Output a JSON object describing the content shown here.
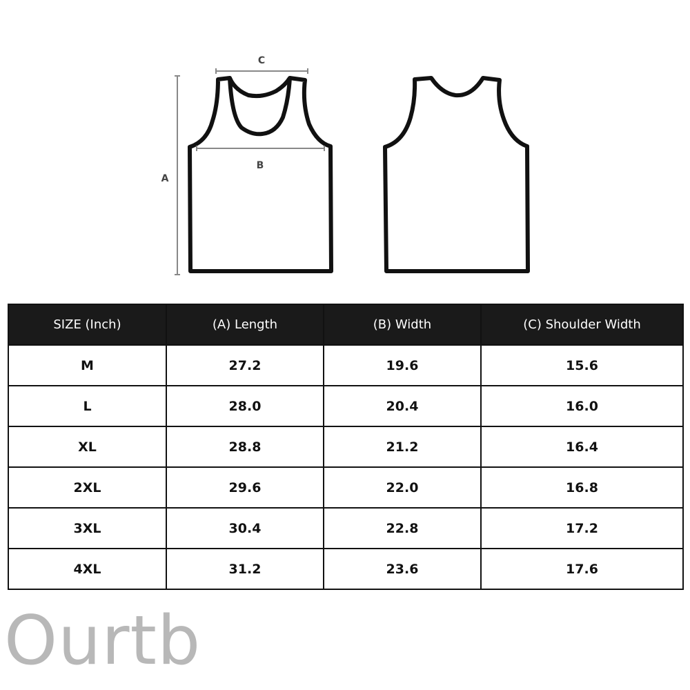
{
  "diagram": {
    "labels": {
      "a": "A",
      "b": "B",
      "c": "C"
    }
  },
  "table": {
    "headers": [
      "SIZE (Inch)",
      "(A) Length",
      "(B) Width",
      "(C) Shoulder Width"
    ],
    "rows": [
      [
        "M",
        "27.2",
        "19.6",
        "15.6"
      ],
      [
        "L",
        "28.0",
        "20.4",
        "16.0"
      ],
      [
        "XL",
        "28.8",
        "21.2",
        "16.4"
      ],
      [
        "2XL",
        "29.6",
        "22.0",
        "16.8"
      ],
      [
        "3XL",
        "30.4",
        "22.8",
        "17.2"
      ],
      [
        "4XL",
        "31.2",
        "23.6",
        "17.6"
      ]
    ]
  },
  "watermark": "Ourtb"
}
